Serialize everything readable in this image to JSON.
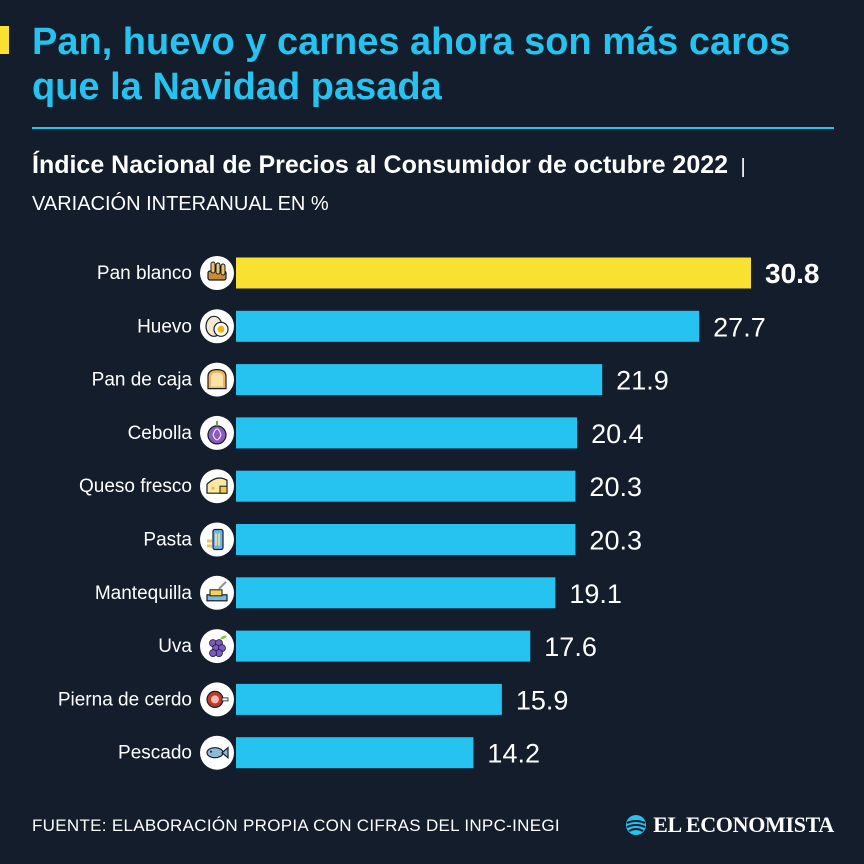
{
  "title": "Pan, huevo y carnes ahora son más caros que la Navidad pasada",
  "subtitle_bold": "Índice Nacional de Precios al Consumidor de octubre 2022",
  "subtitle_light": "VARIACIÓN INTERANUAL EN %",
  "source": "FUENTE: ELABORACIÓN PROPIA CON CIFRAS DEL INPC-INEGI",
  "brand": "EL ECONOMISTA",
  "colors": {
    "background": "#141d2b",
    "accent": "#27c3f0",
    "highlight": "#f8e131",
    "text": "#ffffff"
  },
  "chart_data": {
    "type": "bar",
    "orientation": "horizontal",
    "categories": [
      "Pan blanco",
      "Huevo",
      "Pan de caja",
      "Cebolla",
      "Queso fresco",
      "Pasta",
      "Mantequilla",
      "Uva",
      "Pierna de cerdo",
      "Pescado"
    ],
    "values": [
      30.8,
      27.7,
      21.9,
      20.4,
      20.3,
      20.3,
      19.1,
      17.6,
      15.9,
      14.2
    ],
    "value_labels": [
      "30.8",
      "27.7",
      "21.9",
      "20.4",
      "20.3",
      "20.3",
      "19.1",
      "17.6",
      "15.9",
      "14.2"
    ],
    "icons": [
      "bread-basket-icon",
      "egg-icon",
      "toast-icon",
      "onion-icon",
      "cheese-icon",
      "pasta-icon",
      "butter-icon",
      "grapes-icon",
      "ham-icon",
      "fish-icon"
    ],
    "highlight_index": 0,
    "xlim": [
      0,
      30.8
    ],
    "grid": false,
    "legend": "none"
  }
}
